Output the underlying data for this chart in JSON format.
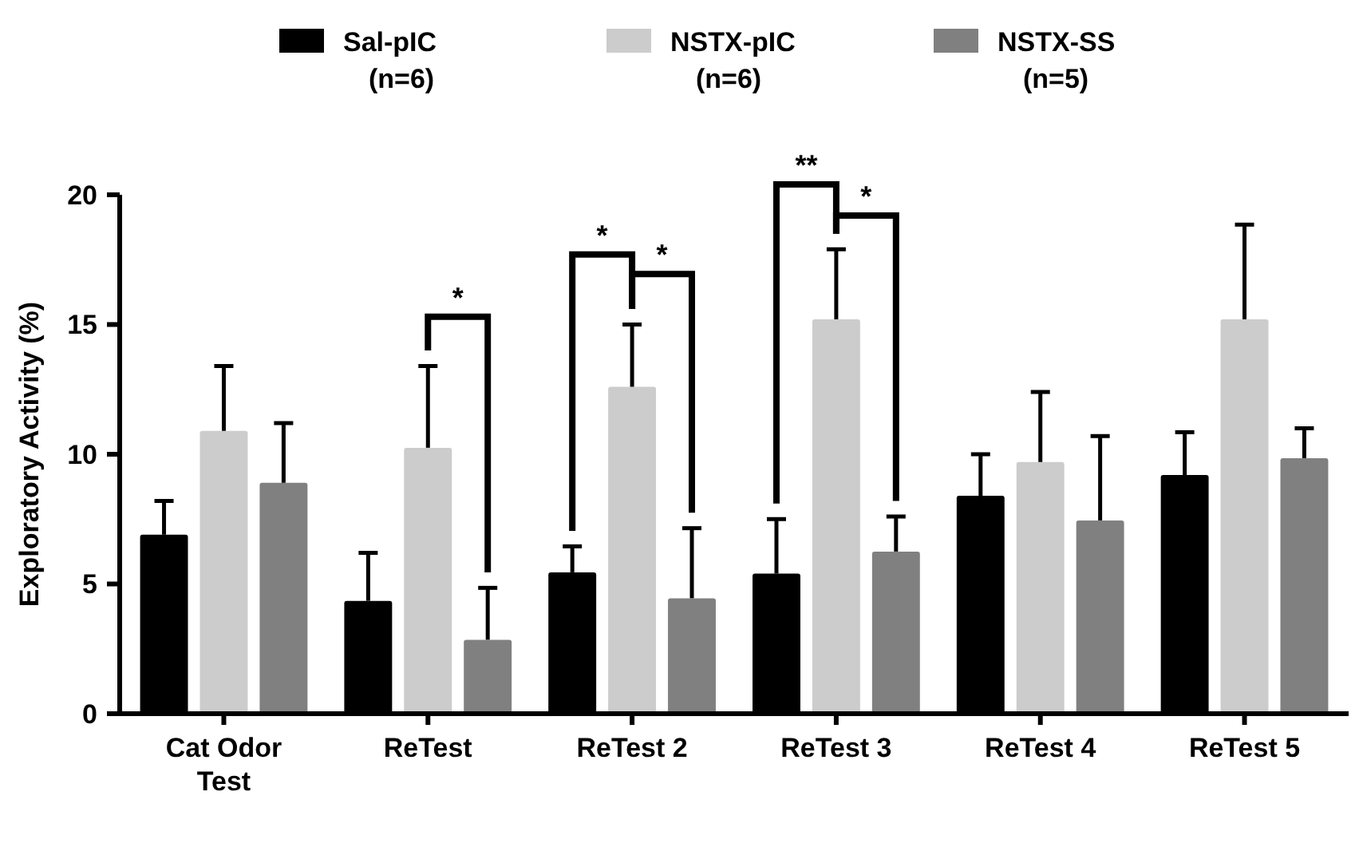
{
  "chart_data": {
    "type": "bar",
    "ylabel": "Exploratory Activity (%)",
    "categories": [
      "Cat Odor Test",
      "ReTest",
      "ReTest 2",
      "ReTest 3",
      "ReTest 4",
      "ReTest 5"
    ],
    "series": [
      {
        "name": "Sal-pIC\n(n=6)",
        "color": "#000000",
        "values": [
          6.9,
          4.35,
          5.45,
          5.4,
          8.4,
          9.2
        ],
        "errors": [
          [
            6.9,
            8.2
          ],
          [
            4.35,
            6.2
          ],
          [
            5.45,
            6.45
          ],
          [
            5.4,
            7.5
          ],
          [
            8.4,
            10.0
          ],
          [
            9.2,
            10.85
          ]
        ]
      },
      {
        "name": "NSTX-pIC\n(n=6)",
        "color": "#cccccc",
        "values": [
          10.9,
          10.25,
          12.6,
          15.2,
          9.7,
          15.2
        ],
        "errors": [
          [
            10.9,
            13.4
          ],
          [
            10.25,
            13.4
          ],
          [
            12.6,
            15.0
          ],
          [
            15.2,
            17.9
          ],
          [
            9.7,
            12.4
          ],
          [
            15.2,
            18.85
          ]
        ]
      },
      {
        "name": "NSTX-SS\n(n=5)",
        "color": "#808080",
        "values": [
          8.9,
          2.85,
          4.45,
          6.25,
          7.45,
          9.85
        ],
        "errors": [
          [
            8.9,
            11.2
          ],
          [
            2.85,
            4.85
          ],
          [
            4.45,
            7.15
          ],
          [
            6.25,
            7.6
          ],
          [
            7.45,
            10.7
          ],
          [
            9.85,
            11.0
          ]
        ]
      }
    ],
    "ylim": [
      0,
      20
    ],
    "yticks": [
      0,
      5,
      10,
      15,
      20
    ],
    "grid": false,
    "legend": "top",
    "annotations": [
      "*",
      "*",
      "*",
      "**",
      "*"
    ]
  }
}
